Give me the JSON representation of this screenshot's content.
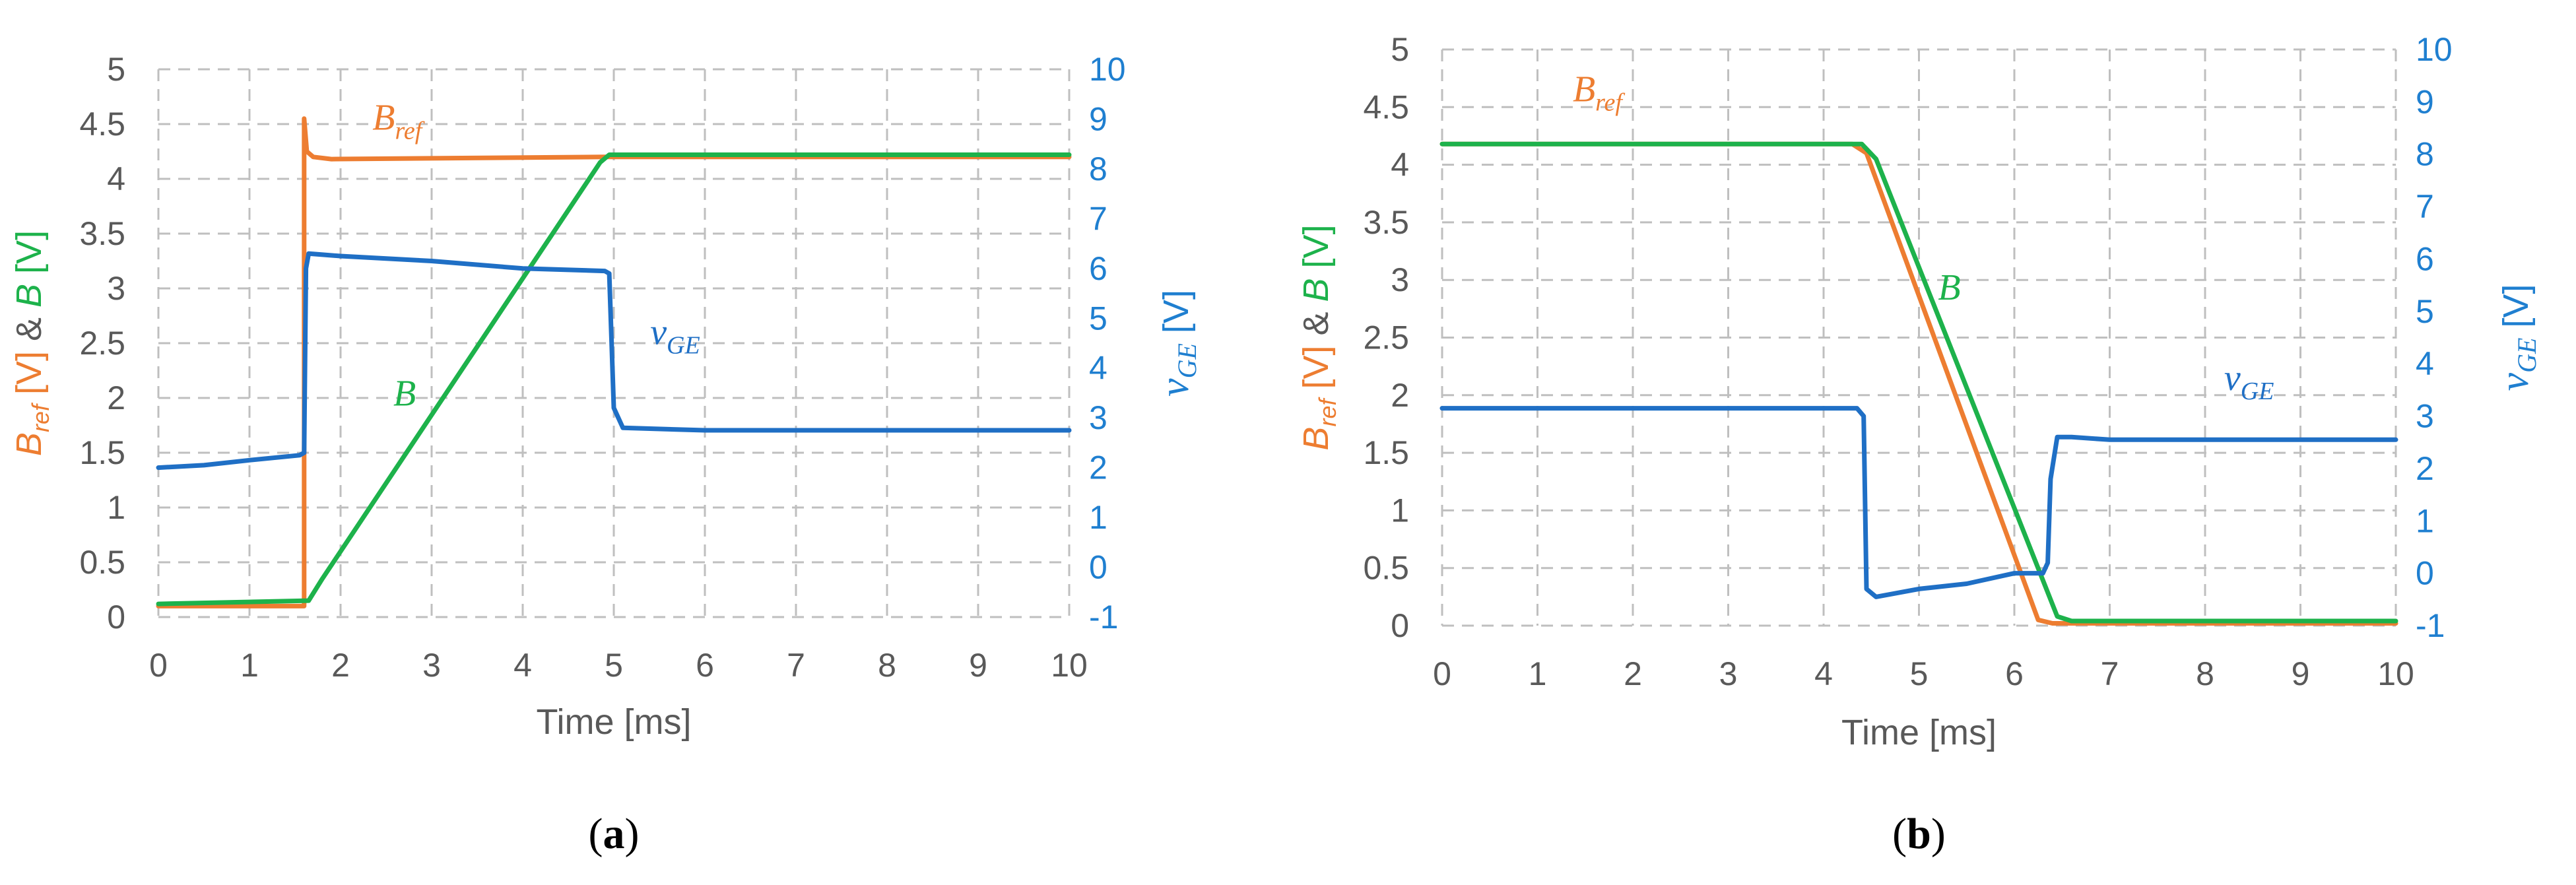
{
  "colors": {
    "bref": "#ED7D31",
    "b": "#1DB24B",
    "vge": "#1F6FC5",
    "axis_text": "#595959",
    "right_axis_text": "#1F7FD0",
    "grid": "#BFBFBF"
  },
  "chart_data": [
    {
      "type": "line",
      "panel_label": "(a)",
      "panel_letter": "a",
      "xlabel": "Time [ms]",
      "ylabel_parts": {
        "b1": "B",
        "s1": "ref",
        "t1": " [V] & ",
        "b2": "B",
        "t2": " [V]"
      },
      "y2label_parts": {
        "v": "v",
        "sub": "GE",
        "unit": " [V]"
      },
      "xlim": [
        0,
        10
      ],
      "ylim": [
        0,
        5
      ],
      "y2lim": [
        -1,
        10
      ],
      "x_ticks": [
        "0",
        "1",
        "2",
        "3",
        "4",
        "5",
        "6",
        "7",
        "8",
        "9",
        "10"
      ],
      "y_ticks": [
        "0",
        "0.5",
        "1",
        "1.5",
        "2",
        "2.5",
        "3",
        "3.5",
        "4",
        "4.5",
        "5"
      ],
      "y2_ticks": [
        "-1",
        "0",
        "1",
        "2",
        "3",
        "4",
        "5",
        "6",
        "7",
        "8",
        "9",
        "10"
      ],
      "grid": true,
      "series": [
        {
          "name": "Bref",
          "key": "bref",
          "axis": "left",
          "x": [
            0,
            1.6,
            1.6,
            1.63,
            1.7,
            1.9,
            4.9,
            10
          ],
          "y": [
            0.1,
            0.1,
            4.55,
            4.25,
            4.2,
            4.18,
            4.2,
            4.2
          ]
        },
        {
          "name": "B",
          "key": "b",
          "axis": "left",
          "x": [
            0,
            1.65,
            1.8,
            4.85,
            4.95,
            10
          ],
          "y": [
            0.12,
            0.15,
            0.35,
            4.15,
            4.22,
            4.22
          ]
        },
        {
          "name": "vGE",
          "key": "vge",
          "axis": "right",
          "x": [
            0,
            0.5,
            1.0,
            1.55,
            1.6,
            1.62,
            1.65,
            2.0,
            3.0,
            4.0,
            4.9,
            4.95,
            5.0,
            5.1,
            6.0,
            7.0,
            8.0,
            9.0,
            10.0
          ],
          "y": [
            2.0,
            2.05,
            2.15,
            2.25,
            2.3,
            6.0,
            6.3,
            6.25,
            6.15,
            6.0,
            5.95,
            5.9,
            3.2,
            2.8,
            2.75,
            2.75,
            2.75,
            2.75,
            2.75
          ]
        }
      ],
      "annotations": [
        {
          "key": "bref",
          "base": "B",
          "sub": "ref",
          "x": 2.35,
          "y": 4.45,
          "axis": "left"
        },
        {
          "key": "b",
          "base": "B",
          "sub": "",
          "x": 2.58,
          "y": 1.93,
          "axis": "left"
        },
        {
          "key": "vge",
          "base": "v",
          "sub": "GE",
          "x": 5.4,
          "y": 4.48,
          "axis": "right"
        }
      ]
    },
    {
      "type": "line",
      "panel_label": "(b)",
      "panel_letter": "b",
      "xlabel": "Time [ms]",
      "ylabel_parts": {
        "b1": "B",
        "s1": "ref",
        "t1": " [V] & ",
        "b2": "B",
        "t2": " [V]"
      },
      "y2label_parts": {
        "v": "v",
        "sub": "GE",
        "unit": " [V]"
      },
      "xlim": [
        0,
        10
      ],
      "ylim": [
        0,
        5
      ],
      "y2lim": [
        -1,
        10
      ],
      "x_ticks": [
        "0",
        "1",
        "2",
        "3",
        "4",
        "5",
        "6",
        "7",
        "8",
        "9",
        "10"
      ],
      "y_ticks": [
        "0",
        "0.5",
        "1",
        "1.5",
        "2",
        "2.5",
        "3",
        "3.5",
        "4",
        "4.5",
        "5"
      ],
      "y2_ticks": [
        "-1",
        "0",
        "1",
        "2",
        "3",
        "4",
        "5",
        "6",
        "7",
        "8",
        "9",
        "10"
      ],
      "grid": true,
      "series": [
        {
          "name": "Bref",
          "key": "bref",
          "axis": "left",
          "x": [
            0,
            4.3,
            4.45,
            6.25,
            6.4,
            10
          ],
          "y": [
            4.18,
            4.18,
            4.1,
            0.05,
            0.02,
            0.02
          ]
        },
        {
          "name": "B",
          "key": "b",
          "axis": "left",
          "x": [
            0,
            4.4,
            4.55,
            6.45,
            6.6,
            10
          ],
          "y": [
            4.18,
            4.18,
            4.05,
            0.08,
            0.04,
            0.04
          ]
        },
        {
          "name": "vGE",
          "key": "vge",
          "axis": "right",
          "x": [
            0,
            1.0,
            2.0,
            3.0,
            4.0,
            4.35,
            4.42,
            4.45,
            4.55,
            5.0,
            5.5,
            6.0,
            6.3,
            6.35,
            6.38,
            6.45,
            6.6,
            7.0,
            8.0,
            9.0,
            10.0
          ],
          "y": [
            3.15,
            3.15,
            3.15,
            3.15,
            3.15,
            3.15,
            3.0,
            -0.3,
            -0.45,
            -0.3,
            -0.2,
            0.0,
            0.0,
            0.2,
            1.8,
            2.6,
            2.6,
            2.55,
            2.55,
            2.55,
            2.55
          ]
        }
      ],
      "annotations": [
        {
          "key": "bref",
          "base": "B",
          "sub": "ref",
          "x": 1.37,
          "y": 4.55,
          "axis": "left"
        },
        {
          "key": "b",
          "base": "B",
          "sub": "",
          "x": 5.2,
          "y": 2.83,
          "axis": "left"
        },
        {
          "key": "vge",
          "base": "v",
          "sub": "GE",
          "x": 8.2,
          "y": 3.5,
          "axis": "right"
        }
      ]
    }
  ]
}
